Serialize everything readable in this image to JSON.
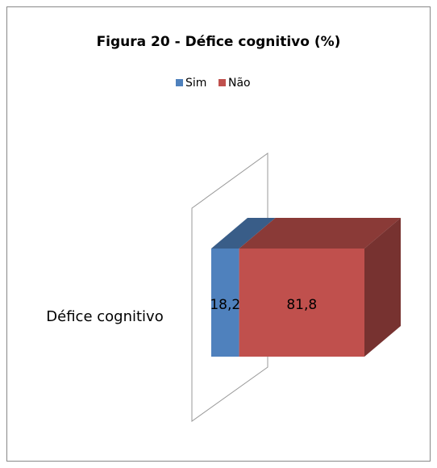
{
  "chart_data": {
    "type": "bar",
    "orientation": "horizontal",
    "stacked": true,
    "title": "Figura 20 - Défice cognitivo (%)",
    "categories": [
      "Défice cognitivo"
    ],
    "series": [
      {
        "name": "Sim",
        "color": "#4f81bd",
        "values": [
          18.2
        ],
        "value_labels": [
          "18,2"
        ]
      },
      {
        "name": "Não",
        "color": "#c0504d",
        "values": [
          81.8
        ],
        "value_labels": [
          "81,8"
        ]
      }
    ],
    "legend": "top"
  }
}
